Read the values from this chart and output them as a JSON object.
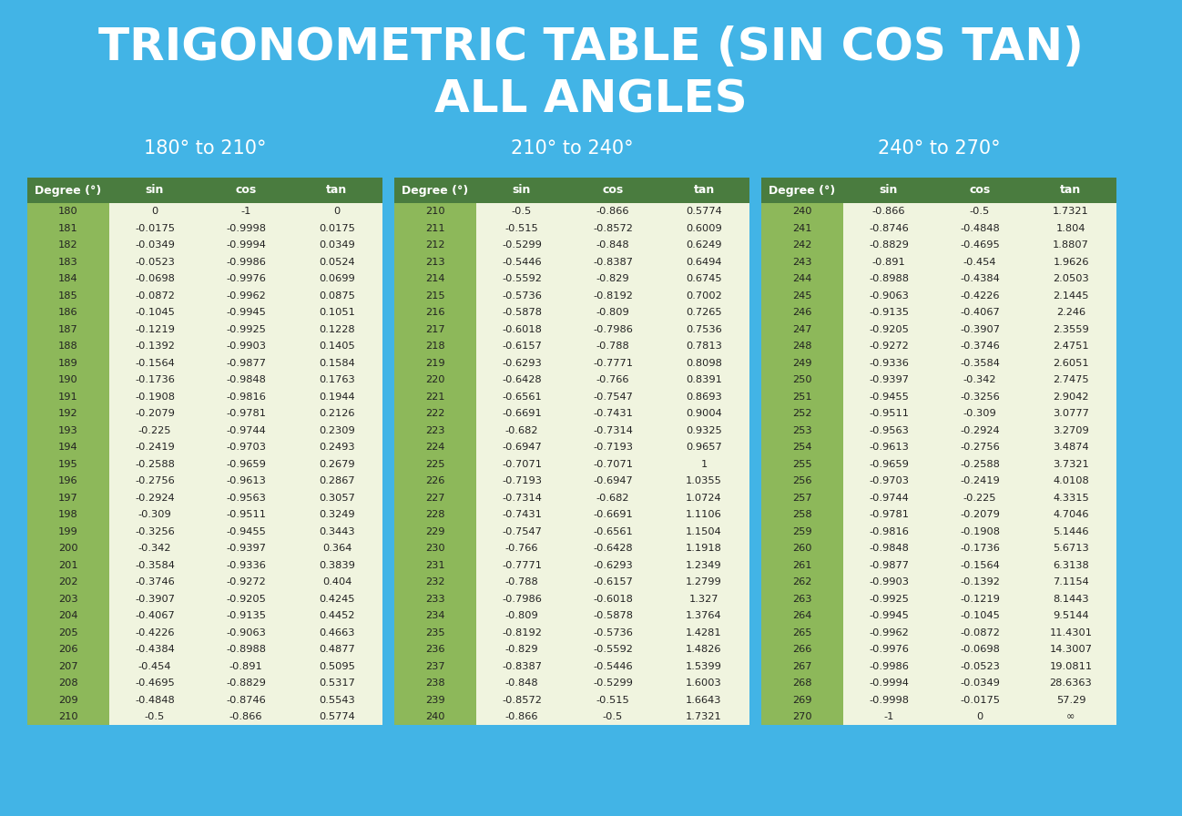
{
  "bg_color": "#42b4e6",
  "title_line1": "TRIGONOMETRIC TABLE (SIN COS TAN)",
  "title_line2": "ALL ANGLES",
  "title_color": "#ffffff",
  "title_fontsize": 36,
  "subtitle_fontsize": 15,
  "header_bg": "#4a7c3f",
  "header_text_color": "#ffffff",
  "col1_bg": "#8db85a",
  "data_bg": "#f0f4df",
  "data_text_color": "#222222",
  "col1_text_color": "#222222",
  "tables": [
    {
      "title": "180° to 210°",
      "cols": [
        "Degree (°)",
        "sin",
        "cos",
        "tan"
      ],
      "rows": [
        [
          "180",
          "0",
          "-1",
          "0"
        ],
        [
          "181",
          "-0.0175",
          "-0.9998",
          "0.0175"
        ],
        [
          "182",
          "-0.0349",
          "-0.9994",
          "0.0349"
        ],
        [
          "183",
          "-0.0523",
          "-0.9986",
          "0.0524"
        ],
        [
          "184",
          "-0.0698",
          "-0.9976",
          "0.0699"
        ],
        [
          "185",
          "-0.0872",
          "-0.9962",
          "0.0875"
        ],
        [
          "186",
          "-0.1045",
          "-0.9945",
          "0.1051"
        ],
        [
          "187",
          "-0.1219",
          "-0.9925",
          "0.1228"
        ],
        [
          "188",
          "-0.1392",
          "-0.9903",
          "0.1405"
        ],
        [
          "189",
          "-0.1564",
          "-0.9877",
          "0.1584"
        ],
        [
          "190",
          "-0.1736",
          "-0.9848",
          "0.1763"
        ],
        [
          "191",
          "-0.1908",
          "-0.9816",
          "0.1944"
        ],
        [
          "192",
          "-0.2079",
          "-0.9781",
          "0.2126"
        ],
        [
          "193",
          "-0.225",
          "-0.9744",
          "0.2309"
        ],
        [
          "194",
          "-0.2419",
          "-0.9703",
          "0.2493"
        ],
        [
          "195",
          "-0.2588",
          "-0.9659",
          "0.2679"
        ],
        [
          "196",
          "-0.2756",
          "-0.9613",
          "0.2867"
        ],
        [
          "197",
          "-0.2924",
          "-0.9563",
          "0.3057"
        ],
        [
          "198",
          "-0.309",
          "-0.9511",
          "0.3249"
        ],
        [
          "199",
          "-0.3256",
          "-0.9455",
          "0.3443"
        ],
        [
          "200",
          "-0.342",
          "-0.9397",
          "0.364"
        ],
        [
          "201",
          "-0.3584",
          "-0.9336",
          "0.3839"
        ],
        [
          "202",
          "-0.3746",
          "-0.9272",
          "0.404"
        ],
        [
          "203",
          "-0.3907",
          "-0.9205",
          "0.4245"
        ],
        [
          "204",
          "-0.4067",
          "-0.9135",
          "0.4452"
        ],
        [
          "205",
          "-0.4226",
          "-0.9063",
          "0.4663"
        ],
        [
          "206",
          "-0.4384",
          "-0.8988",
          "0.4877"
        ],
        [
          "207",
          "-0.454",
          "-0.891",
          "0.5095"
        ],
        [
          "208",
          "-0.4695",
          "-0.8829",
          "0.5317"
        ],
        [
          "209",
          "-0.4848",
          "-0.8746",
          "0.5543"
        ],
        [
          "210",
          "-0.5",
          "-0.866",
          "0.5774"
        ]
      ]
    },
    {
      "title": "210° to 240°",
      "cols": [
        "Degree (°)",
        "sin",
        "cos",
        "tan"
      ],
      "rows": [
        [
          "210",
          "-0.5",
          "-0.866",
          "0.5774"
        ],
        [
          "211",
          "-0.515",
          "-0.8572",
          "0.6009"
        ],
        [
          "212",
          "-0.5299",
          "-0.848",
          "0.6249"
        ],
        [
          "213",
          "-0.5446",
          "-0.8387",
          "0.6494"
        ],
        [
          "214",
          "-0.5592",
          "-0.829",
          "0.6745"
        ],
        [
          "215",
          "-0.5736",
          "-0.8192",
          "0.7002"
        ],
        [
          "216",
          "-0.5878",
          "-0.809",
          "0.7265"
        ],
        [
          "217",
          "-0.6018",
          "-0.7986",
          "0.7536"
        ],
        [
          "218",
          "-0.6157",
          "-0.788",
          "0.7813"
        ],
        [
          "219",
          "-0.6293",
          "-0.7771",
          "0.8098"
        ],
        [
          "220",
          "-0.6428",
          "-0.766",
          "0.8391"
        ],
        [
          "221",
          "-0.6561",
          "-0.7547",
          "0.8693"
        ],
        [
          "222",
          "-0.6691",
          "-0.7431",
          "0.9004"
        ],
        [
          "223",
          "-0.682",
          "-0.7314",
          "0.9325"
        ],
        [
          "224",
          "-0.6947",
          "-0.7193",
          "0.9657"
        ],
        [
          "225",
          "-0.7071",
          "-0.7071",
          "1"
        ],
        [
          "226",
          "-0.7193",
          "-0.6947",
          "1.0355"
        ],
        [
          "227",
          "-0.7314",
          "-0.682",
          "1.0724"
        ],
        [
          "228",
          "-0.7431",
          "-0.6691",
          "1.1106"
        ],
        [
          "229",
          "-0.7547",
          "-0.6561",
          "1.1504"
        ],
        [
          "230",
          "-0.766",
          "-0.6428",
          "1.1918"
        ],
        [
          "231",
          "-0.7771",
          "-0.6293",
          "1.2349"
        ],
        [
          "232",
          "-0.788",
          "-0.6157",
          "1.2799"
        ],
        [
          "233",
          "-0.7986",
          "-0.6018",
          "1.327"
        ],
        [
          "234",
          "-0.809",
          "-0.5878",
          "1.3764"
        ],
        [
          "235",
          "-0.8192",
          "-0.5736",
          "1.4281"
        ],
        [
          "236",
          "-0.829",
          "-0.5592",
          "1.4826"
        ],
        [
          "237",
          "-0.8387",
          "-0.5446",
          "1.5399"
        ],
        [
          "238",
          "-0.848",
          "-0.5299",
          "1.6003"
        ],
        [
          "239",
          "-0.8572",
          "-0.515",
          "1.6643"
        ],
        [
          "240",
          "-0.866",
          "-0.5",
          "1.7321"
        ]
      ]
    },
    {
      "title": "240° to 270°",
      "cols": [
        "Degree (°)",
        "sin",
        "cos",
        "tan"
      ],
      "rows": [
        [
          "240",
          "-0.866",
          "-0.5",
          "1.7321"
        ],
        [
          "241",
          "-0.8746",
          "-0.4848",
          "1.804"
        ],
        [
          "242",
          "-0.8829",
          "-0.4695",
          "1.8807"
        ],
        [
          "243",
          "-0.891",
          "-0.454",
          "1.9626"
        ],
        [
          "244",
          "-0.8988",
          "-0.4384",
          "2.0503"
        ],
        [
          "245",
          "-0.9063",
          "-0.4226",
          "2.1445"
        ],
        [
          "246",
          "-0.9135",
          "-0.4067",
          "2.246"
        ],
        [
          "247",
          "-0.9205",
          "-0.3907",
          "2.3559"
        ],
        [
          "248",
          "-0.9272",
          "-0.3746",
          "2.4751"
        ],
        [
          "249",
          "-0.9336",
          "-0.3584",
          "2.6051"
        ],
        [
          "250",
          "-0.9397",
          "-0.342",
          "2.7475"
        ],
        [
          "251",
          "-0.9455",
          "-0.3256",
          "2.9042"
        ],
        [
          "252",
          "-0.9511",
          "-0.309",
          "3.0777"
        ],
        [
          "253",
          "-0.9563",
          "-0.2924",
          "3.2709"
        ],
        [
          "254",
          "-0.9613",
          "-0.2756",
          "3.4874"
        ],
        [
          "255",
          "-0.9659",
          "-0.2588",
          "3.7321"
        ],
        [
          "256",
          "-0.9703",
          "-0.2419",
          "4.0108"
        ],
        [
          "257",
          "-0.9744",
          "-0.225",
          "4.3315"
        ],
        [
          "258",
          "-0.9781",
          "-0.2079",
          "4.7046"
        ],
        [
          "259",
          "-0.9816",
          "-0.1908",
          "5.1446"
        ],
        [
          "260",
          "-0.9848",
          "-0.1736",
          "5.6713"
        ],
        [
          "261",
          "-0.9877",
          "-0.1564",
          "6.3138"
        ],
        [
          "262",
          "-0.9903",
          "-0.1392",
          "7.1154"
        ],
        [
          "263",
          "-0.9925",
          "-0.1219",
          "8.1443"
        ],
        [
          "264",
          "-0.9945",
          "-0.1045",
          "9.5144"
        ],
        [
          "265",
          "-0.9962",
          "-0.0872",
          "11.4301"
        ],
        [
          "266",
          "-0.9976",
          "-0.0698",
          "14.3007"
        ],
        [
          "267",
          "-0.9986",
          "-0.0523",
          "19.0811"
        ],
        [
          "268",
          "-0.9994",
          "-0.0349",
          "28.6363"
        ],
        [
          "269",
          "-0.9998",
          "-0.0175",
          "57.29"
        ],
        [
          "270",
          "-1",
          "0",
          "∞"
        ]
      ]
    }
  ]
}
